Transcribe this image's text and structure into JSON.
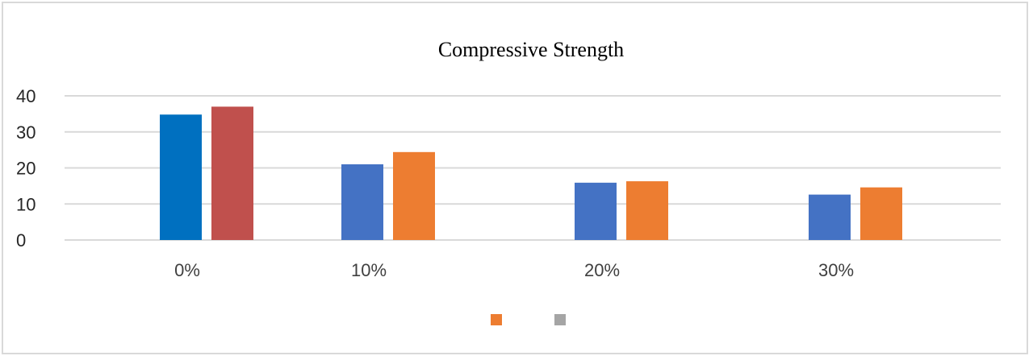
{
  "chart_data": {
    "type": "bar",
    "title": "Compressive Strength",
    "xlabel": "",
    "ylabel": "",
    "categories": [
      "0%",
      "10%",
      "20%",
      "30%"
    ],
    "ylim": [
      0,
      40
    ],
    "yticks": [
      0,
      10,
      20,
      30,
      40
    ],
    "grid": true,
    "legend_position": "bottom",
    "series": [
      {
        "values": [
          34.8,
          21.0,
          15.9,
          12.6
        ],
        "colors": [
          "#0070c0",
          "#4472c4",
          "#4472c4",
          "#4472c4"
        ]
      },
      {
        "values": [
          37.0,
          24.4,
          16.3,
          14.6
        ],
        "colors": [
          "#c0504d",
          "#ed7d31",
          "#ed7d31",
          "#ed7d31"
        ]
      }
    ],
    "legend": [
      {
        "color": "#ed7d31"
      },
      {
        "color": "#a5a5a5"
      }
    ]
  }
}
